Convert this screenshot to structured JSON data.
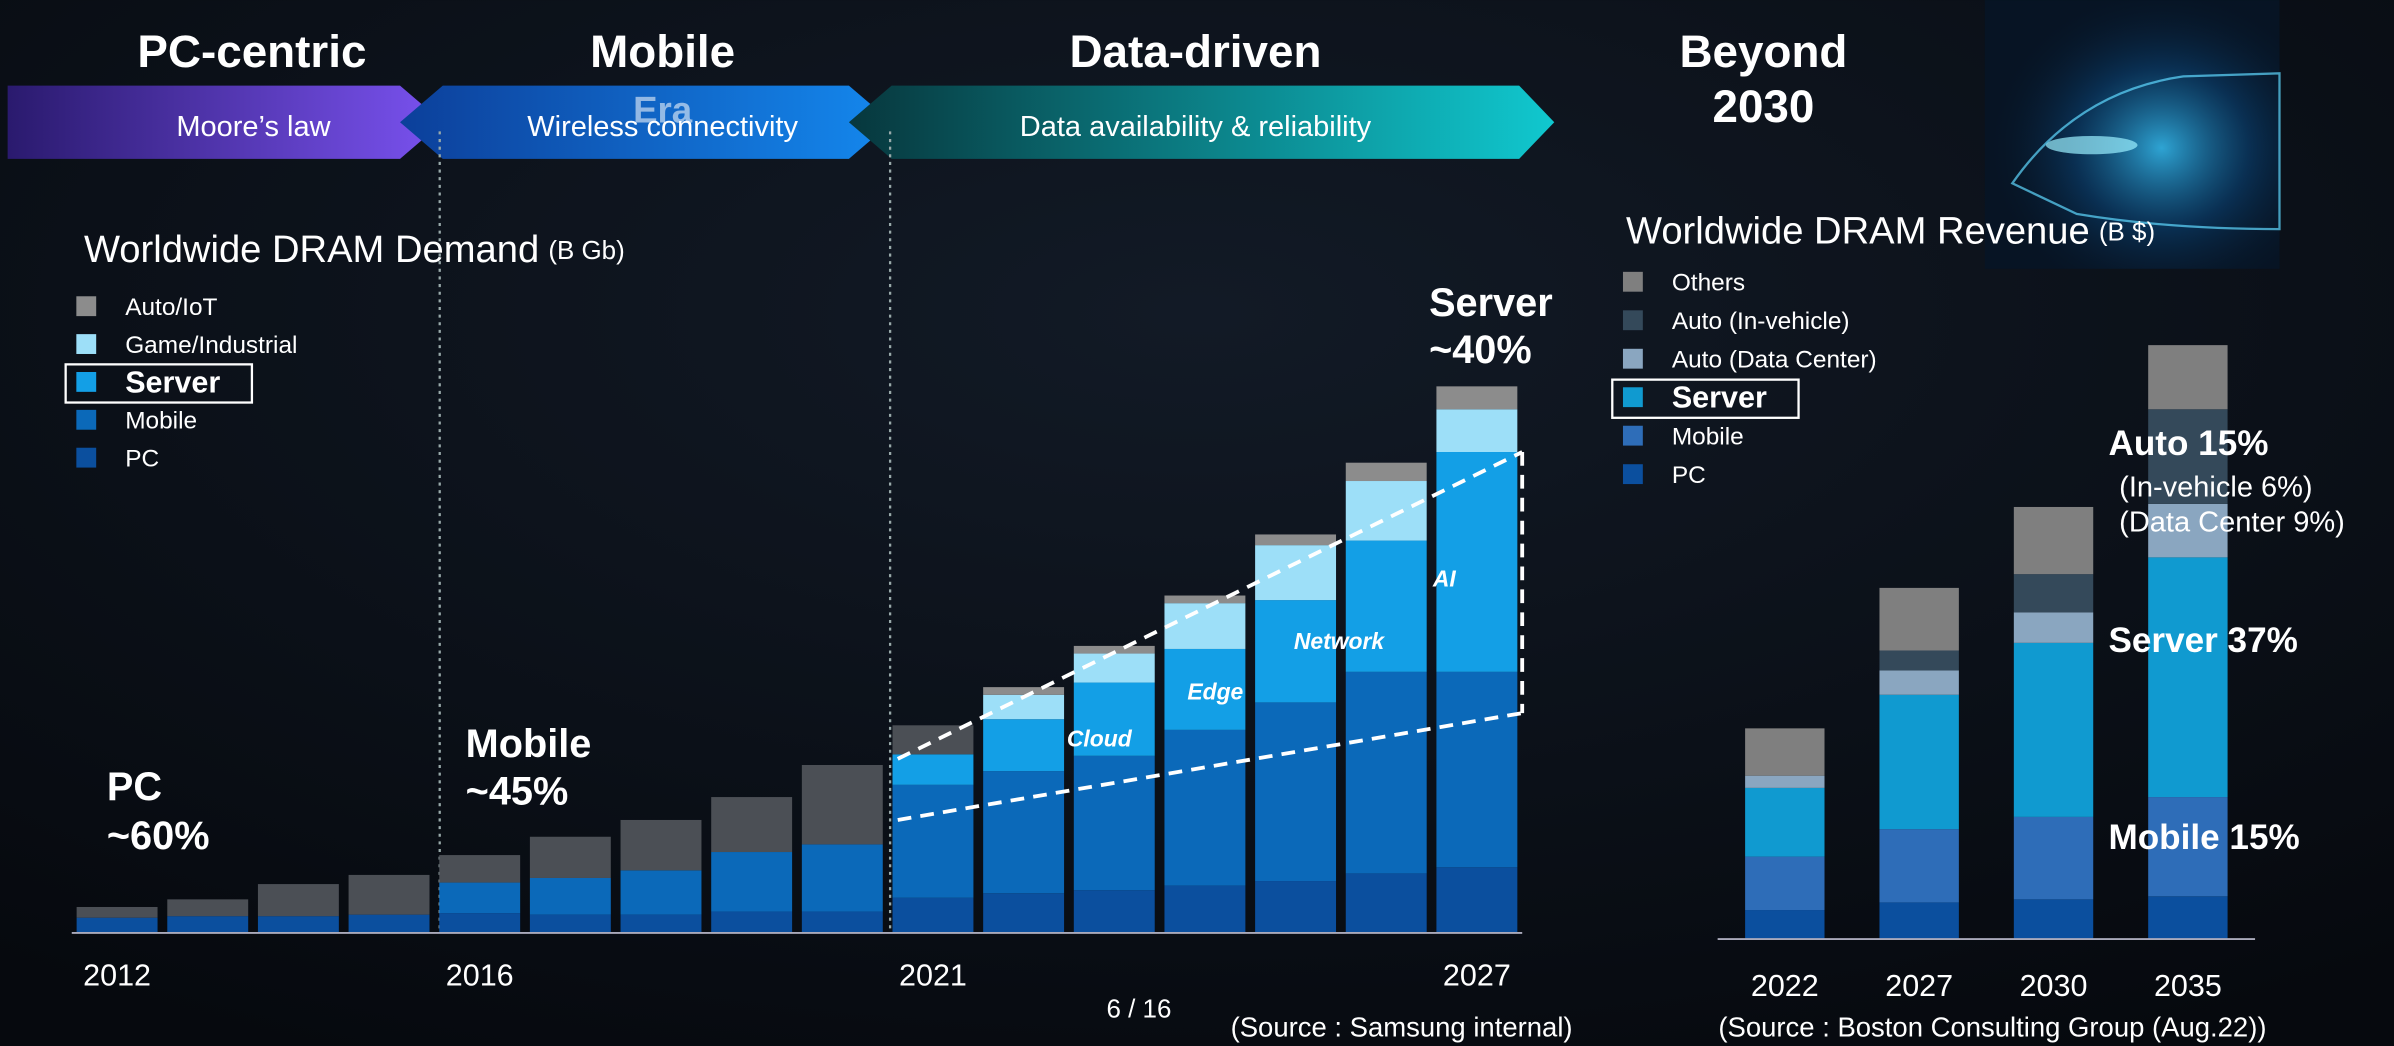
{
  "slide": {
    "eras": [
      "PC-centric",
      "Mobile",
      "Data-driven"
    ],
    "beyond": [
      "Beyond",
      "2030"
    ],
    "arrows": [
      "Moore’s law",
      "Wireless connectivity",
      "Data availability & reliability"
    ],
    "era_watermark": "Era",
    "page": "6 / 16"
  },
  "chart_data": [
    {
      "type": "bar",
      "stacked": true,
      "title": "Worldwide DRAM Demand",
      "unit": "(B Gb)",
      "categories": [
        "2012",
        null,
        null,
        null,
        "2016",
        null,
        null,
        null,
        null,
        "2021",
        null,
        null,
        null,
        null,
        null,
        "2027"
      ],
      "ylim": [
        0,
        400
      ],
      "series": [
        {
          "name": "PC",
          "color": "#0b4f9e",
          "label_color": "#1552a8",
          "values": [
            10,
            11,
            11,
            12,
            13,
            12,
            12,
            14,
            14,
            23,
            26,
            28,
            31,
            34,
            39,
            43
          ]
        },
        {
          "name": "Mobile",
          "color": "#0b69b9",
          "label_color": "#1a6fc8",
          "values": [
            0,
            0,
            0,
            0,
            20,
            24,
            29,
            39,
            44,
            74,
            80,
            88,
            102,
            117,
            132,
            128
          ]
        },
        {
          "name": "Server",
          "color": "#139fe6",
          "label_color": "#1aa0e0",
          "highlighted": true,
          "values": [
            0,
            0,
            0,
            0,
            0,
            0,
            0,
            0,
            0,
            20,
            34,
            48,
            53,
            67,
            86,
            144
          ]
        },
        {
          "name": "Game/Industrial",
          "color": "#9ddff8",
          "label_color": "#8fd8f5",
          "values": [
            0,
            0,
            0,
            0,
            0,
            0,
            0,
            0,
            0,
            0,
            16,
            19,
            30,
            36,
            39,
            28
          ]
        },
        {
          "name": "Auto/IoT",
          "color": "#8c8c8c",
          "label_color": "#e0e0e0",
          "values": [
            0,
            0,
            0,
            0,
            0,
            0,
            0,
            0,
            0,
            0,
            5,
            5,
            5,
            7,
            12,
            15
          ]
        },
        {
          "color": "#4b4f55",
          "values": [
            7,
            11,
            21,
            26,
            18,
            27,
            33,
            36,
            52,
            19,
            0,
            0,
            0,
            0,
            0,
            0
          ]
        }
      ],
      "annotations": [
        "PC",
        "~60%",
        "Mobile",
        "~45%",
        "Server",
        "~40%"
      ],
      "segment_labels": [
        "Cloud",
        "Edge",
        "Network",
        "AI"
      ],
      "source": "(Source : Samsung internal)"
    },
    {
      "type": "bar",
      "stacked": true,
      "title": "Worldwide DRAM Revenue",
      "unit": "(B $)",
      "categories": [
        "2022",
        "2027",
        "2030",
        "2035"
      ],
      "ylim": [
        0,
        400
      ],
      "series": [
        {
          "name": "PC",
          "color": "#0b4f9e",
          "label_color": "#1552a8",
          "values": [
            19,
            24,
            26,
            28
          ]
        },
        {
          "name": "Mobile",
          "color": "#2e6db8",
          "label_color": "#2e6db8",
          "values": [
            35,
            48,
            54,
            65
          ]
        },
        {
          "name": "Server",
          "color": "#109ad0",
          "label_color": "#1aa0e0",
          "highlighted": true,
          "values": [
            45,
            88,
            114,
            157
          ]
        },
        {
          "name": "Auto (Data Center)",
          "color": "#8aa6c0",
          "label_color": "#f08a30",
          "values": [
            8,
            16,
            20,
            35
          ]
        },
        {
          "name": "Auto (In-vehicle)",
          "color": "#34495a",
          "label_color": "#f08a30",
          "values": [
            0,
            13,
            25,
            62
          ]
        },
        {
          "name": "Others",
          "color": "#7f7f7f",
          "label_color": "#d0d0d0",
          "values": [
            31,
            41,
            44,
            42
          ]
        }
      ],
      "annotations": [
        "Auto 15%",
        "(In-vehicle 6%)",
        "(Data Center 9%)",
        "Server 37%",
        "Mobile 15%"
      ],
      "source": "(Source : Boston Consulting Group (Aug.22))"
    }
  ]
}
